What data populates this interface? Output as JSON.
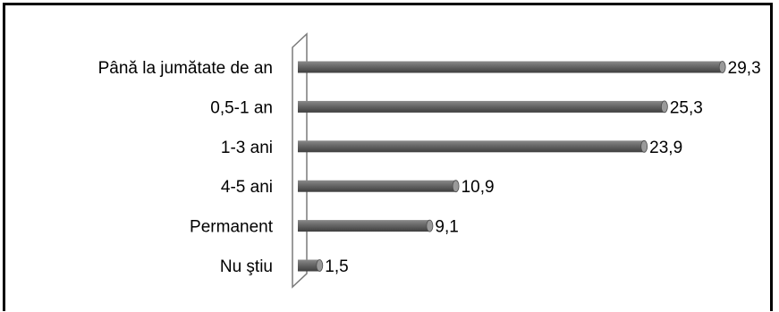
{
  "chart_data": {
    "type": "bar",
    "orientation": "horizontal",
    "style": "3d-cylinder",
    "categories": [
      "Până la jumătate de an",
      "0,5-1 an",
      "1-3 ani",
      "4-5 ani",
      "Permanent",
      "Nu ştiu"
    ],
    "values": [
      29.3,
      25.3,
      23.9,
      10.9,
      9.1,
      1.5
    ],
    "value_labels": [
      "29,3",
      "25,3",
      "23,9",
      "10,9",
      "9,1",
      "1,5"
    ],
    "title": "",
    "xlabel": "",
    "ylabel": "",
    "xlim": [
      0,
      30
    ],
    "grid": false,
    "legend": "none",
    "bar_color": "#6e6e6e"
  }
}
